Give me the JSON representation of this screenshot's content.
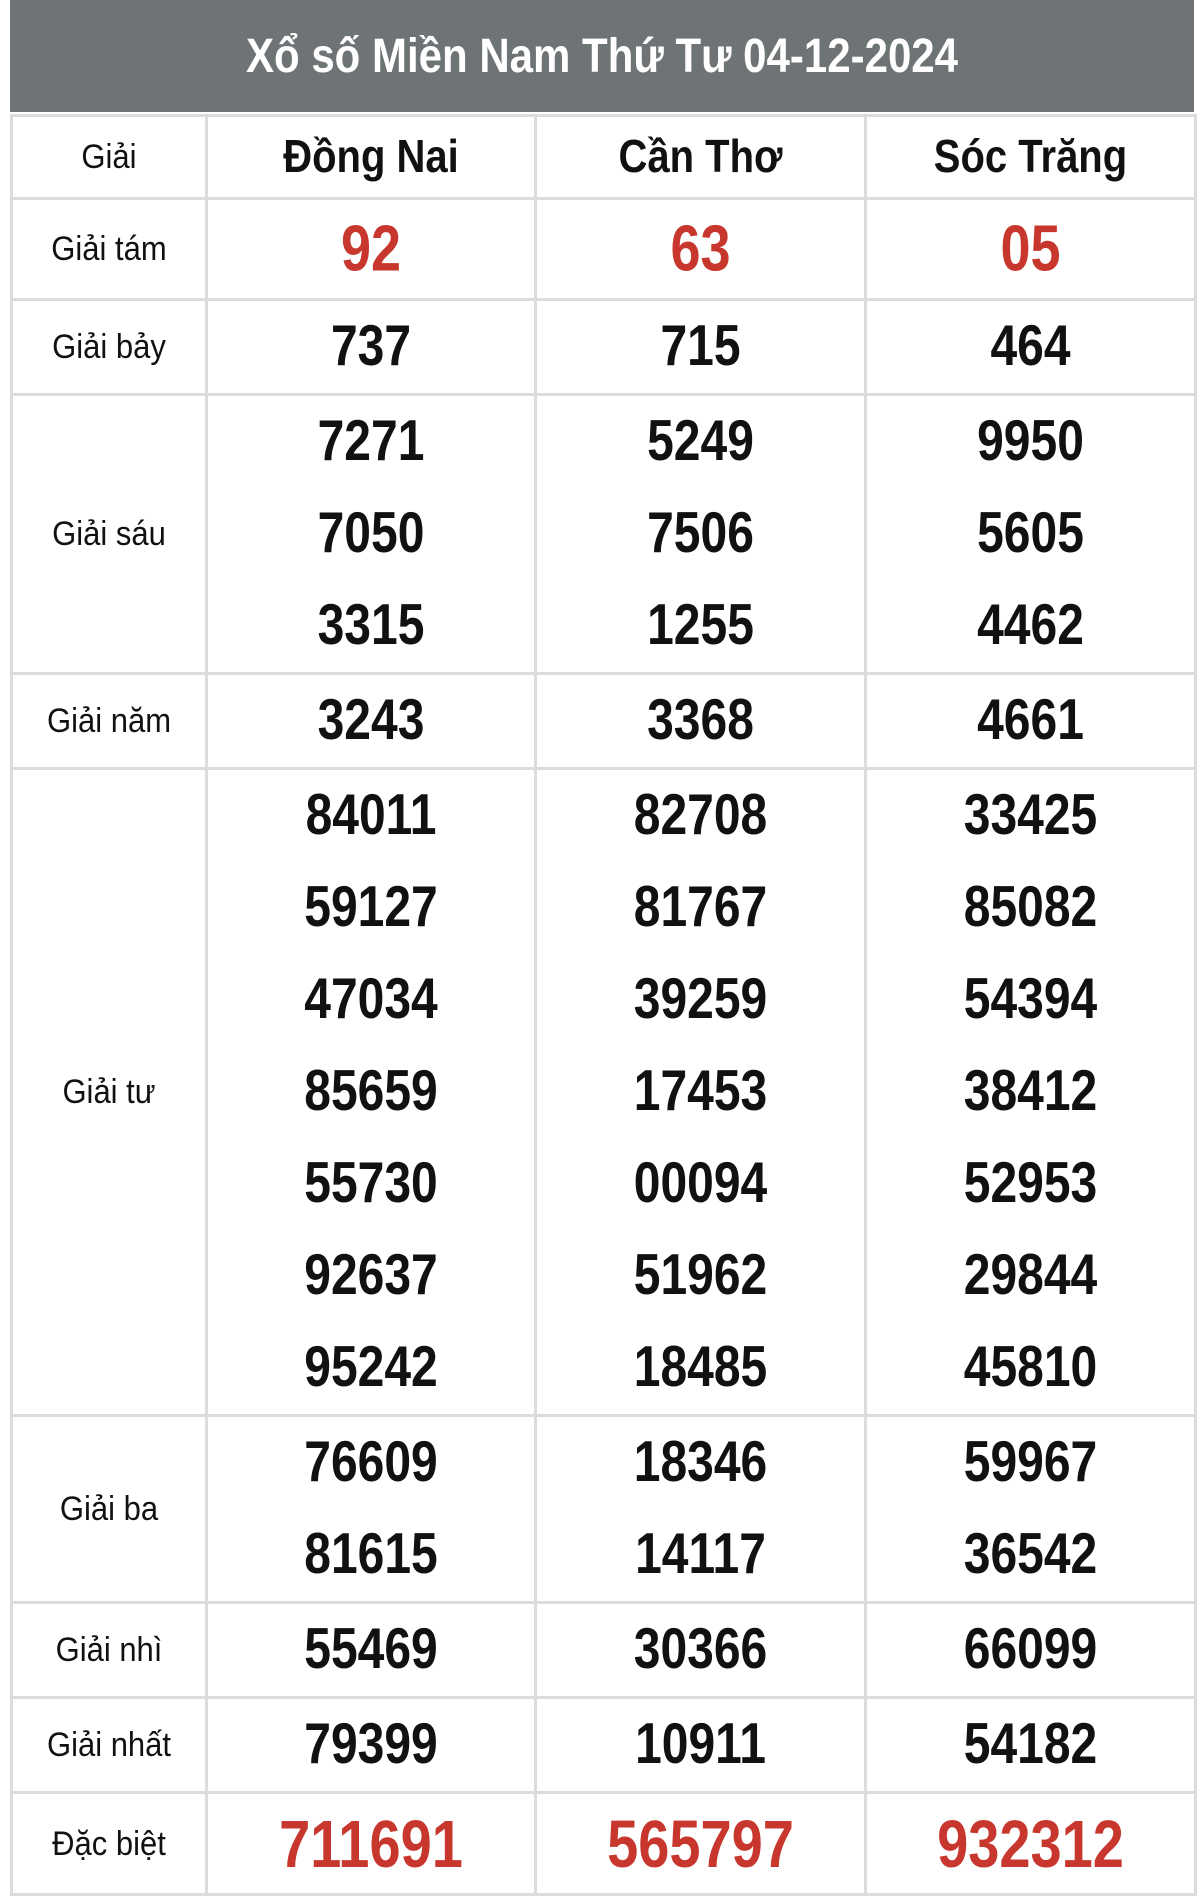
{
  "title": "Xổ số Miền Nam Thứ Tư 04-12-2024",
  "header": {
    "label": "Giải",
    "provinces": [
      "Đồng Nai",
      "Cần Thơ",
      "Sóc Trăng"
    ]
  },
  "colors": {
    "header_bg": "#6e7476",
    "highlight": "#c8372d",
    "border": "#dcdcdc"
  },
  "prizes": [
    {
      "label": "Giải tám",
      "highlight": true,
      "values": [
        [
          "92"
        ],
        [
          "63"
        ],
        [
          "05"
        ]
      ]
    },
    {
      "label": "Giải bảy",
      "values": [
        [
          "737"
        ],
        [
          "715"
        ],
        [
          "464"
        ]
      ]
    },
    {
      "label": "Giải sáu",
      "values": [
        [
          "7271",
          "7050",
          "3315"
        ],
        [
          "5249",
          "7506",
          "1255"
        ],
        [
          "9950",
          "5605",
          "4462"
        ]
      ]
    },
    {
      "label": "Giải năm",
      "values": [
        [
          "3243"
        ],
        [
          "3368"
        ],
        [
          "4661"
        ]
      ]
    },
    {
      "label": "Giải tư",
      "values": [
        [
          "84011",
          "59127",
          "47034",
          "85659",
          "55730",
          "92637",
          "95242"
        ],
        [
          "82708",
          "81767",
          "39259",
          "17453",
          "00094",
          "51962",
          "18485"
        ],
        [
          "33425",
          "85082",
          "54394",
          "38412",
          "52953",
          "29844",
          "45810"
        ]
      ]
    },
    {
      "label": "Giải ba",
      "values": [
        [
          "76609",
          "81615"
        ],
        [
          "18346",
          "14117"
        ],
        [
          "59967",
          "36542"
        ]
      ]
    },
    {
      "label": "Giải nhì",
      "values": [
        [
          "55469"
        ],
        [
          "30366"
        ],
        [
          "66099"
        ]
      ]
    },
    {
      "label": "Giải nhất",
      "values": [
        [
          "79399"
        ],
        [
          "10911"
        ],
        [
          "54182"
        ]
      ]
    },
    {
      "label": "Đặc biệt",
      "highlight": true,
      "values": [
        [
          "711691"
        ],
        [
          "565797"
        ],
        [
          "932312"
        ]
      ]
    }
  ]
}
